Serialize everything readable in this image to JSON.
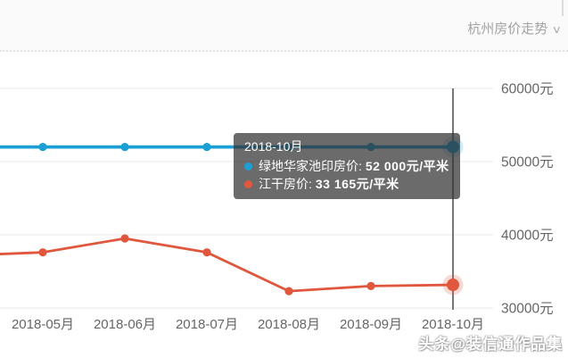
{
  "header": {
    "dropdown_label": "杭州房价走势",
    "chevron": "∨"
  },
  "chart_data": {
    "type": "line",
    "title": "杭州房价走势",
    "categories": [
      "2018-05月",
      "2018-06月",
      "2018-07月",
      "2018-08月",
      "2018-09月",
      "2018-10月"
    ],
    "series": [
      {
        "name": "绿地华家池印房价",
        "color": "#1c9fd4",
        "values": [
          52000,
          52000,
          52000,
          52000,
          52000,
          52000
        ],
        "lead_in_value": 52000
      },
      {
        "name": "江干房价",
        "color": "#e0573d",
        "values": [
          37600,
          39500,
          37600,
          32300,
          33000,
          33165
        ],
        "lead_in_value": 37300
      }
    ],
    "y_ticks": [
      {
        "value": 30000,
        "label": "30000元"
      },
      {
        "value": 40000,
        "label": "40000元"
      },
      {
        "value": 50000,
        "label": "50000元"
      },
      {
        "value": 60000,
        "label": "60000元"
      }
    ],
    "ylim": [
      30000,
      60000
    ],
    "unit": "元/平米",
    "grid": "on",
    "legend_position": "none",
    "hover_index": 5,
    "axis_pointer_color": "#555555",
    "gridline_color": "#e8e8e8",
    "axis_label_color": "#666666"
  },
  "tooltip": {
    "title": "2018-10月",
    "items": [
      {
        "label": "绿地华家池印房价:",
        "value": "52 000元/平米",
        "color": "#1c9fd4"
      },
      {
        "label": "江干房价:",
        "value": "33 165元/平米",
        "color": "#e0573d"
      }
    ]
  },
  "watermark": "头条@装信通作品集"
}
